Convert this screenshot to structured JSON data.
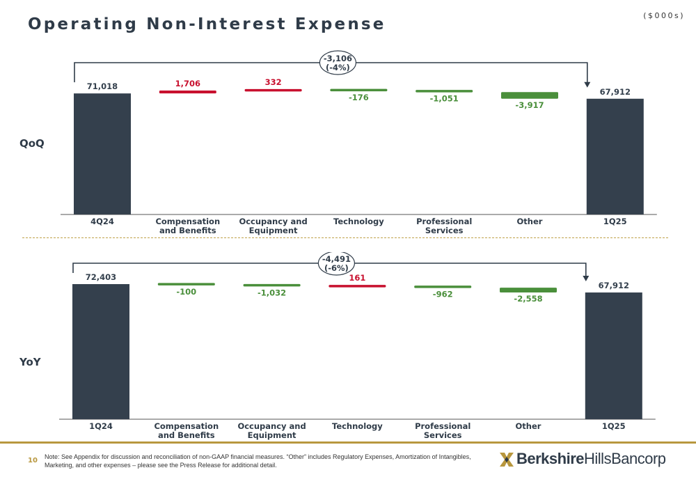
{
  "title": "Operating Non-Interest Expense",
  "units": "($000s)",
  "row_labels": {
    "qoq": "QoQ",
    "yoy": "YoY"
  },
  "colors": {
    "bar": "#34404d",
    "increase": "#c8102e",
    "decrease": "#4a8f3b",
    "accent": "#b8973e"
  },
  "chart_data": [
    {
      "type": "bar",
      "subtype": "waterfall",
      "name": "QoQ",
      "categories": [
        [
          "4Q24"
        ],
        [
          "Compensation",
          "and Benefits"
        ],
        [
          "Occupancy and",
          "Equipment"
        ],
        [
          "Technology"
        ],
        [
          "Professional",
          "Services"
        ],
        [
          "Other"
        ],
        [
          "1Q25"
        ]
      ],
      "values": [
        71018,
        1706,
        332,
        -176,
        -1051,
        -3917,
        67912
      ],
      "labels": [
        "71,018",
        "1,706",
        "332",
        "-176",
        "-1,051",
        "-3,917",
        "67,912"
      ],
      "total_change": [
        "-3,106",
        "(-4%)"
      ]
    },
    {
      "type": "bar",
      "subtype": "waterfall",
      "name": "YoY",
      "categories": [
        [
          "1Q24"
        ],
        [
          "Compensation",
          "and Benefits"
        ],
        [
          "Occupancy and",
          "Equipment"
        ],
        [
          "Technology"
        ],
        [
          "Professional",
          "Services"
        ],
        [
          "Other"
        ],
        [
          "1Q25"
        ]
      ],
      "values": [
        72403,
        -100,
        -1032,
        161,
        -962,
        -2558,
        67912
      ],
      "labels": [
        "72,403",
        "-100",
        "-1,032",
        "161",
        "-962",
        "-2,558",
        "67,912"
      ],
      "total_change": [
        "-4,491",
        "(-6%)"
      ]
    }
  ],
  "footer": {
    "page_number": "10",
    "note": "Note: See Appendix for discussion and reconciliation of non-GAAP financial measures. “Other” includes Regulatory Expenses, Amortization of Intangibles, Marketing, and other expenses – please see the Press Release for additional detail.",
    "logo_bold": "Berkshire",
    "logo_regular": "HillsBancorp"
  }
}
